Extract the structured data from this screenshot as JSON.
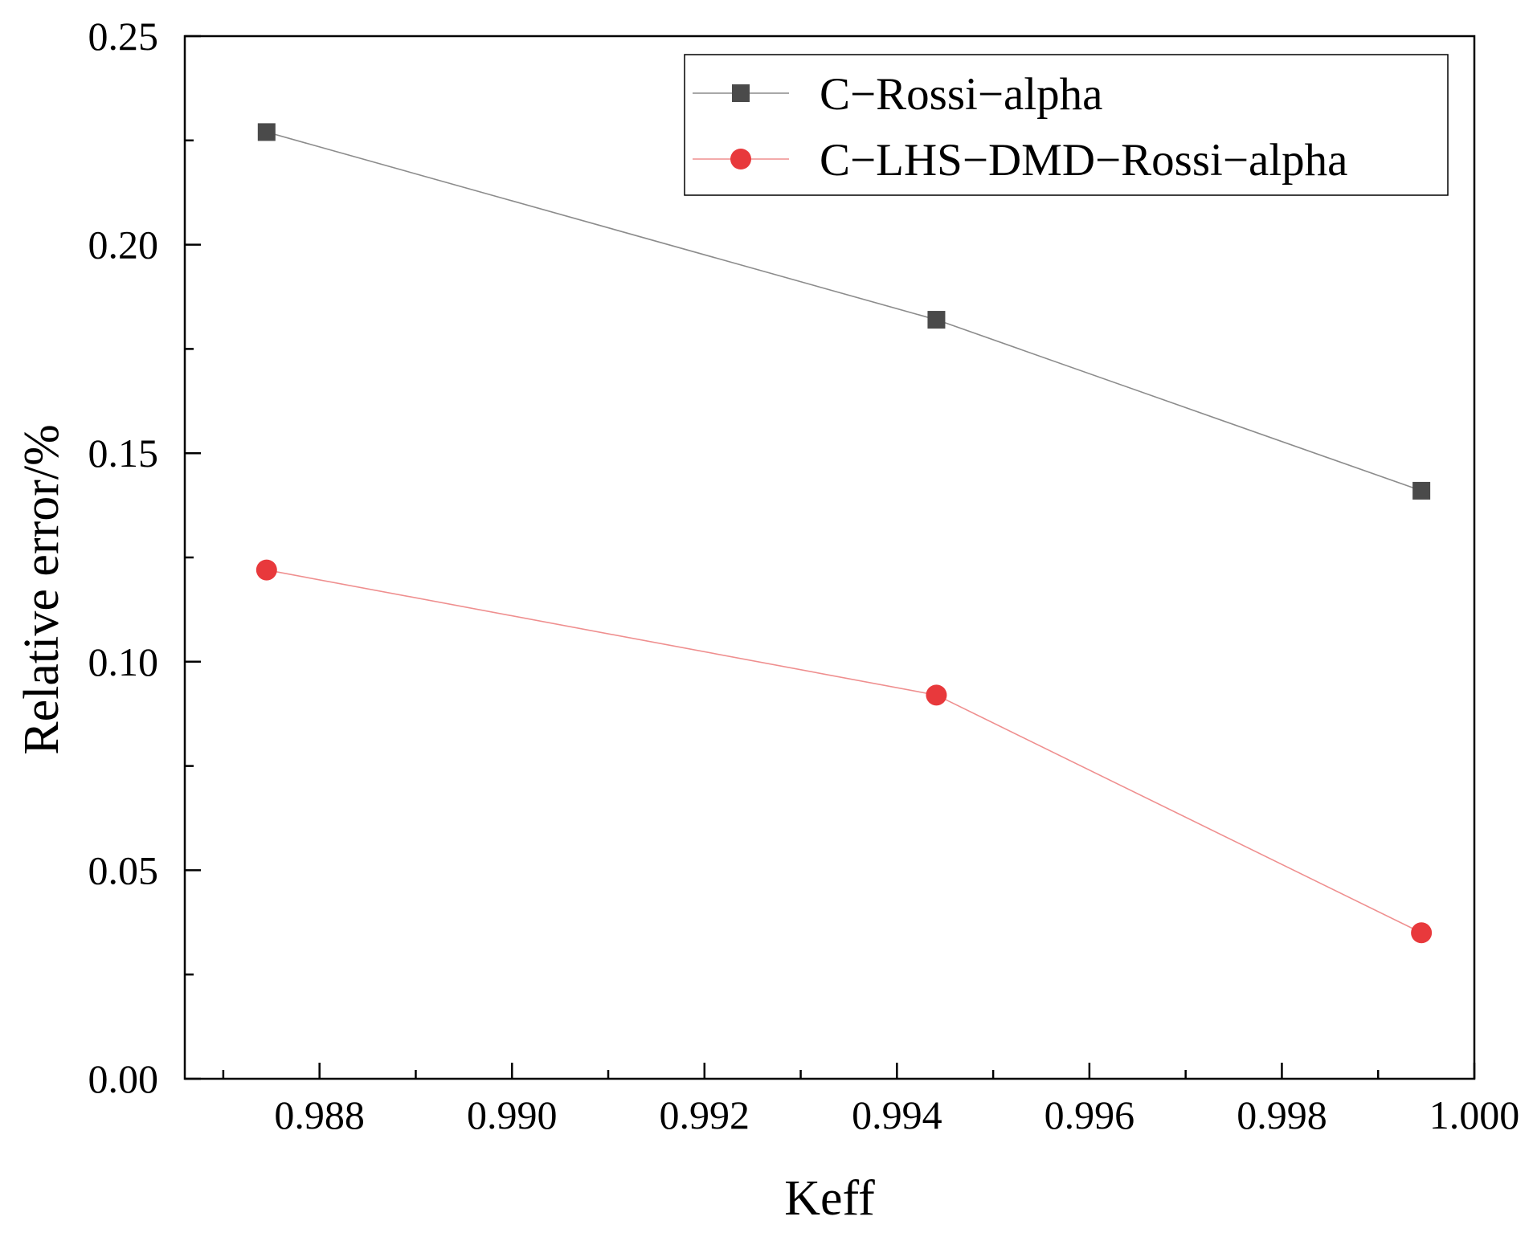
{
  "chart_data": {
    "type": "line",
    "title": "",
    "xlabel": "Keff",
    "ylabel": "Relative error/%",
    "xlim": [
      0.9866,
      1.0
    ],
    "ylim": [
      0.0,
      0.25
    ],
    "xticks": [
      "0.988",
      "0.990",
      "0.992",
      "0.994",
      "0.996",
      "0.998",
      "1.000"
    ],
    "xtick_values": [
      0.988,
      0.99,
      0.992,
      0.994,
      0.996,
      0.998,
      1.0
    ],
    "yticks": [
      "0.00",
      "0.05",
      "0.10",
      "0.15",
      "0.20",
      "0.25"
    ],
    "ytick_values": [
      0.0,
      0.05,
      0.1,
      0.15,
      0.2,
      0.25
    ],
    "grid": false,
    "legend_position": "top-right",
    "series": [
      {
        "name": "C−Rossi−alpha",
        "marker": "square",
        "color": "#4a4a4a",
        "line_color": "#8c8c8c",
        "x": [
          0.98745,
          0.99441,
          0.99945
        ],
        "y": [
          0.227,
          0.182,
          0.141
        ]
      },
      {
        "name": "C−LHS−DMD−Rossi−alpha",
        "marker": "circle",
        "color": "#e8393c",
        "line_color": "#ef8f8f",
        "x": [
          0.98745,
          0.99441,
          0.99945
        ],
        "y": [
          0.122,
          0.092,
          0.035
        ]
      }
    ]
  }
}
